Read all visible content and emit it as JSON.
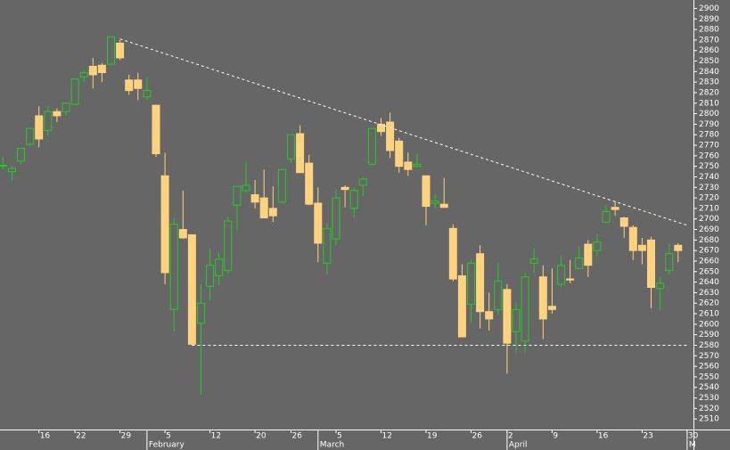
{
  "chart_data": {
    "type": "candlestick",
    "categories": [
      null,
      null,
      null,
      null,
      null,
      "16",
      null,
      null,
      null,
      "22",
      null,
      null,
      null,
      null,
      "29",
      null,
      null,
      null,
      null,
      "5",
      null,
      null,
      null,
      null,
      "12",
      null,
      null,
      null,
      null,
      "20",
      null,
      null,
      null,
      "26",
      null,
      null,
      null,
      null,
      "5",
      null,
      null,
      null,
      null,
      "12",
      null,
      null,
      null,
      null,
      "19",
      null,
      null,
      null,
      null,
      "26",
      null,
      null,
      null,
      "2",
      null,
      null,
      null,
      null,
      "9",
      null,
      null,
      null,
      null,
      "16",
      null,
      null,
      null,
      null,
      "23",
      null,
      null,
      null,
      null,
      "30"
    ],
    "months": [
      null,
      null,
      null,
      null,
      null,
      null,
      null,
      null,
      null,
      null,
      null,
      null,
      null,
      null,
      null,
      null,
      null,
      "February",
      null,
      null,
      null,
      null,
      null,
      null,
      null,
      null,
      null,
      null,
      null,
      null,
      null,
      null,
      null,
      null,
      null,
      null,
      "March",
      null,
      null,
      null,
      null,
      null,
      null,
      null,
      null,
      null,
      null,
      null,
      null,
      null,
      null,
      null,
      null,
      null,
      null,
      null,
      null,
      "April",
      null,
      null,
      null,
      null,
      null,
      null,
      null,
      null,
      null,
      null,
      null,
      null,
      null,
      null,
      null,
      null,
      null,
      null,
      null,
      "M"
    ],
    "open": [
      2742,
      2751,
      2745,
      2755,
      2771,
      2798,
      2784,
      2802,
      2802,
      2809,
      2835,
      2845,
      2846,
      2847,
      2867,
      2832,
      2832,
      2816,
      2808,
      2741,
      2614,
      2690,
      2685,
      2601,
      2636,
      2646,
      2651,
      2713,
      2727,
      2723,
      2720,
      2710,
      2716,
      2757,
      2781,
      2753,
      2715,
      2658,
      2681,
      2730,
      2710,
      2732,
      2752,
      2790,
      2792,
      2774,
      2754,
      2750,
      2741,
      2715,
      2714,
      2691,
      2646,
      2619,
      2667,
      2612,
      2614,
      2633,
      2593,
      2584,
      2658,
      2645,
      2617,
      2638,
      2643,
      2653,
      2676,
      2670,
      2697,
      2711,
      2701,
      2692,
      2675,
      2680,
      2634,
      2651,
      2675,
      null
    ],
    "high": [
      2748,
      2759,
      2751,
      2767,
      2787,
      2807,
      2807,
      2805,
      2810,
      2833,
      2842,
      2853,
      2848,
      2873,
      2870,
      2837,
      2839,
      2835,
      2808,
      2763,
      2701,
      2727,
      2685,
      2638,
      2672,
      2668,
      2702,
      2731,
      2754,
      2737,
      2747,
      2731,
      2748,
      2780,
      2789,
      2761,
      2730,
      2696,
      2728,
      2732,
      2730,
      2740,
      2786,
      2796,
      2801,
      2777,
      2763,
      2762,
      2741,
      2724,
      2739,
      2695,
      2657,
      2661,
      2675,
      2630,
      2659,
      2638,
      2620,
      2649,
      2672,
      2656,
      2653,
      2665,
      2661,
      2674,
      2680,
      2686,
      2713,
      2717,
      2702,
      2694,
      2682,
      2683,
      2645,
      2676,
      2677,
      null
    ],
    "low": [
      2737,
      2747,
      2736,
      2752,
      2769,
      2768,
      2779,
      2792,
      2798,
      2808,
      2830,
      2824,
      2830,
      2846,
      2851,
      2818,
      2813,
      2813,
      2759,
      2638,
      2593,
      2681,
      2580,
      2533,
      2622,
      2637,
      2648,
      2689,
      2725,
      2710,
      2701,
      2697,
      2715,
      2753,
      2744,
      2713,
      2659,
      2647,
      2675,
      2711,
      2701,
      2722,
      2751,
      2779,
      2758,
      2744,
      2741,
      2749,
      2694,
      2710,
      2712,
      2641,
      2588,
      2601,
      2596,
      2594,
      2609,
      2553,
      2573,
      2573,
      2649,
      2586,
      2610,
      2635,
      2639,
      2653,
      2645,
      2665,
      2697,
      2703,
      2682,
      2661,
      2657,
      2615,
      2613,
      2647,
      2659,
      null
    ],
    "close": [
      2748,
      2751,
      2748,
      2767,
      2786,
      2776,
      2802,
      2798,
      2810,
      2833,
      2839,
      2837,
      2839,
      2873,
      2853,
      2822,
      2824,
      2822,
      2762,
      2649,
      2695,
      2682,
      2581,
      2620,
      2656,
      2662,
      2698,
      2731,
      2732,
      2716,
      2701,
      2703,
      2747,
      2780,
      2744,
      2714,
      2677,
      2691,
      2720,
      2728,
      2727,
      2738,
      2786,
      2783,
      2765,
      2750,
      2747,
      2752,
      2712,
      2717,
      2711,
      2643,
      2588,
      2658,
      2612,
      2605,
      2641,
      2582,
      2614,
      2645,
      2662,
      2605,
      2614,
      2656,
      2642,
      2663,
      2656,
      2678,
      2707,
      2709,
      2693,
      2670,
      2670,
      2635,
      2639,
      2667,
      2670,
      null
    ],
    "up_color": "#22cc22",
    "down_color": "#ffd27f",
    "trendlines": [
      {
        "x": [
          14,
          77
        ],
        "y": [
          2871,
          2694
        ]
      },
      {
        "x": [
          22,
          77
        ],
        "y": [
          2580,
          2580
        ]
      }
    ],
    "ylim": [
      2500,
      2908
    ],
    "yticks": [
      2510,
      2520,
      2530,
      2540,
      2550,
      2560,
      2570,
      2580,
      2590,
      2600,
      2610,
      2620,
      2630,
      2640,
      2650,
      2660,
      2670,
      2680,
      2690,
      2700,
      2710,
      2720,
      2730,
      2740,
      2750,
      2760,
      2770,
      2780,
      2790,
      2800,
      2810,
      2820,
      2830,
      2840,
      2850,
      2860,
      2870,
      2880,
      2890,
      2900
    ]
  }
}
